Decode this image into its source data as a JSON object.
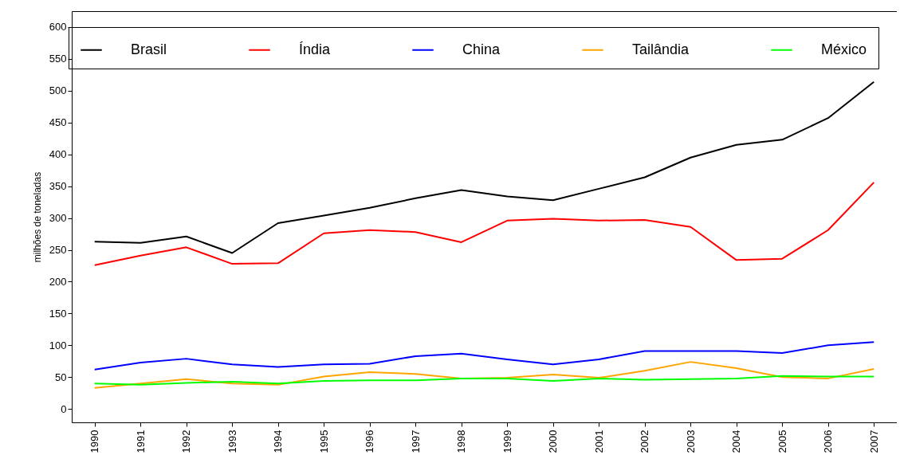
{
  "chart_data": {
    "type": "line",
    "ylabel": "milhões de toneladas",
    "categories": [
      "1990",
      "1991",
      "1992",
      "1993",
      "1994",
      "1995",
      "1996",
      "1997",
      "1998",
      "1999",
      "2000",
      "2001",
      "2002",
      "2003",
      "2004",
      "2005",
      "2006",
      "2007"
    ],
    "series": [
      {
        "name": "Brasil",
        "color": "#000000",
        "values": [
          263,
          261,
          271,
          245,
          292,
          304,
          316,
          331,
          344,
          334,
          328,
          346,
          364,
          395,
          415,
          423,
          457,
          514
        ]
      },
      {
        "name": "Índia",
        "color": "#ff0000",
        "values": [
          226,
          241,
          254,
          228,
          229,
          276,
          281,
          278,
          262,
          296,
          299,
          296,
          297,
          286,
          234,
          236,
          281,
          356
        ]
      },
      {
        "name": "China",
        "color": "#0000ff",
        "values": [
          62,
          73,
          79,
          70,
          66,
          70,
          71,
          83,
          87,
          78,
          70,
          78,
          91,
          91,
          91,
          88,
          100,
          105
        ]
      },
      {
        "name": "Tailândia",
        "color": "#ffa500",
        "values": [
          33,
          40,
          47,
          40,
          38,
          51,
          58,
          55,
          48,
          49,
          54,
          49,
          60,
          74,
          64,
          50,
          48,
          63
        ]
      },
      {
        "name": "México",
        "color": "#00ff00",
        "values": [
          40,
          38,
          41,
          43,
          40,
          44,
          45,
          45,
          48,
          48,
          44,
          48,
          46,
          47,
          48,
          52,
          51,
          51
        ]
      }
    ],
    "ylim": [
      -21,
      625
    ],
    "yticks": [
      0,
      50,
      100,
      150,
      200,
      250,
      300,
      350,
      400,
      450,
      500,
      550,
      600
    ],
    "grid": false,
    "legend": "top",
    "marker": "none",
    "line_style": "solid"
  }
}
